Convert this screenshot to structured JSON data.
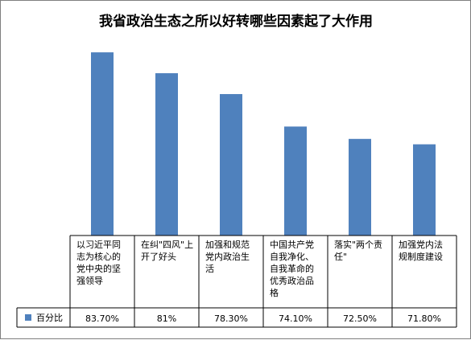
{
  "chart_data": {
    "type": "bar",
    "title": "我省政治生态之所以好转哪些因素起了大作用",
    "categories": [
      "以习近平同志为核心的党中央的坚强领导",
      "在纠\"四风\"上开了好头",
      "加强和规范党内政治生活",
      "中国共产党自我净化、自我革命的优秀政治品格",
      "落实\"两个责任\"",
      "加强党内法规制度建设"
    ],
    "category_lines": [
      [
        "以习近平同",
        "志为核心的",
        "党中央的坚",
        "强领导"
      ],
      [
        "在纠\"四风\"上",
        "开了好头"
      ],
      [
        "加强和规范",
        "党内政治生",
        "活"
      ],
      [
        "中国共产党",
        "自我净化、",
        "自我革命的",
        "优秀政治品",
        "格"
      ],
      [
        "落实\"两个责",
        "任\""
      ],
      [
        "加强党内法",
        "规制度建设"
      ]
    ],
    "series": [
      {
        "name": "百分比",
        "values": [
          83.7,
          81,
          78.3,
          74.1,
          72.5,
          71.8
        ],
        "labels": [
          "83.70%",
          "81%",
          "78.30%",
          "74.10%",
          "72.50%",
          "71.80%"
        ]
      }
    ],
    "ylim": [
      60,
      86
    ],
    "grid": false,
    "legend": "data-table-left",
    "colors": {
      "bar": "#4f81bd",
      "border": "#000000",
      "frame": "#7f7f7f"
    }
  }
}
